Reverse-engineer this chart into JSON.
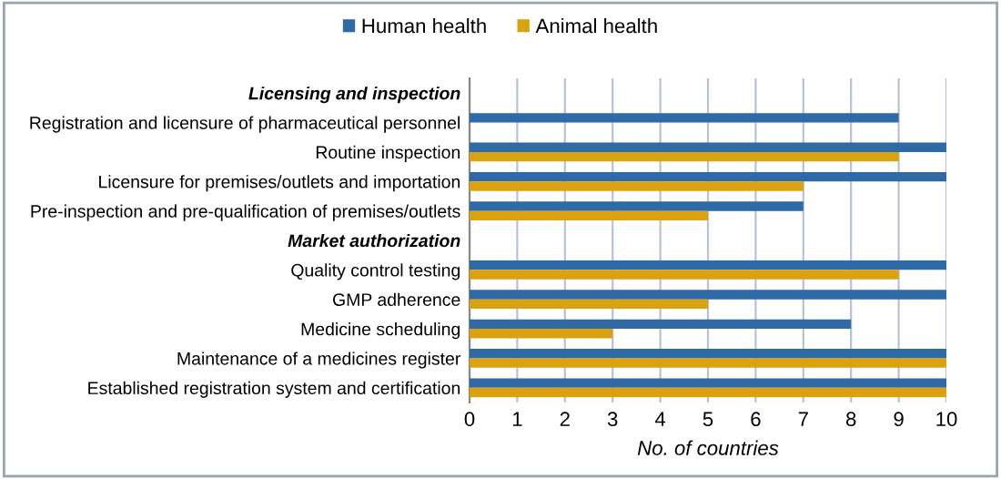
{
  "chart_data": {
    "type": "bar",
    "orientation": "horizontal",
    "xlabel": "No. of countries",
    "categories": [
      "Licensing and inspection",
      "Registration and licensure of pharmaceutical personnel",
      "Routine inspection",
      "Licensure for premises/outlets and importation",
      "Pre-inspection and pre-qualification of premises/outlets",
      "Market authorization",
      "Quality control testing",
      "GMP adherence",
      "Medicine scheduling",
      "Maintenance of a medicines register",
      "Established registration system and certification"
    ],
    "series": [
      {
        "name": "Human health",
        "color": "#2e6aa6",
        "values": [
          null,
          9,
          10,
          10,
          7,
          null,
          10,
          10,
          8,
          10,
          10
        ]
      },
      {
        "name": "Animal health",
        "color": "#dba20f",
        "values": [
          null,
          0,
          9,
          7,
          5,
          null,
          9,
          5,
          3,
          10,
          10
        ]
      }
    ],
    "xlim": [
      0,
      10
    ],
    "xticks": [
      0,
      1,
      2,
      3,
      4,
      5,
      6,
      7,
      8,
      9,
      10
    ],
    "grid": "x",
    "legend": "top"
  }
}
